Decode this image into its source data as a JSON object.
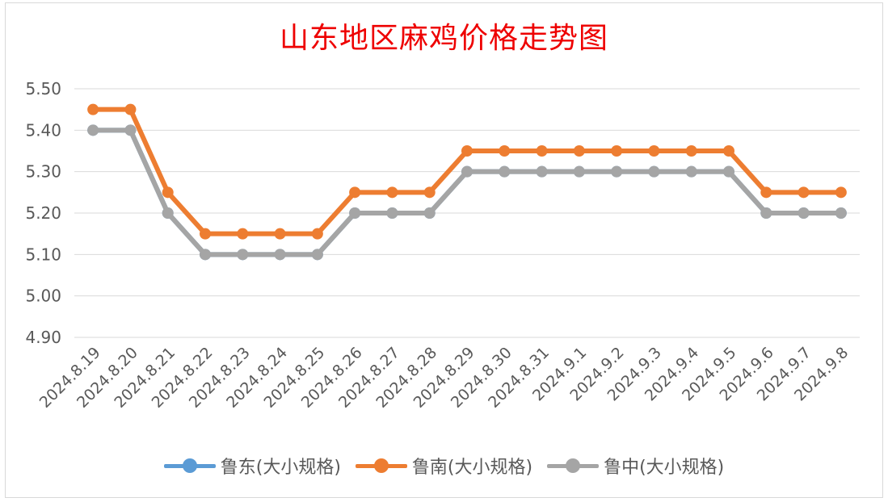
{
  "chart_data": {
    "type": "line",
    "title": "山东地区麻鸡价格走势图",
    "categories": [
      "2024.8.19",
      "2024.8.20",
      "2024.8.21",
      "2024.8.22",
      "2024.8.23",
      "2024.8.24",
      "2024.8.25",
      "2024.8.26",
      "2024.8.27",
      "2024.8.28",
      "2024.8.29",
      "2024.8.30",
      "2024.8.31",
      "2024.9.1",
      "2024.9.2",
      "2024.9.3",
      "2024.9.4",
      "2024.9.5",
      "2024.9.6",
      "2024.9.7",
      "2024.9.8"
    ],
    "y_ticks": [
      "5.50",
      "5.40",
      "5.30",
      "5.20",
      "5.10",
      "5.00",
      "4.90"
    ],
    "ylim": [
      4.9,
      5.5
    ],
    "grid": true,
    "legend_position": "bottom",
    "series": [
      {
        "name": "鲁东(大小规格)",
        "color": "#5b9bd5",
        "values": [
          5.4,
          5.4,
          5.2,
          5.1,
          5.1,
          5.1,
          5.1,
          5.2,
          5.2,
          5.2,
          5.3,
          5.3,
          5.3,
          5.3,
          5.3,
          5.3,
          5.3,
          5.3,
          5.2,
          5.2,
          5.2
        ]
      },
      {
        "name": "鲁南(大小规格)",
        "color": "#ed7d31",
        "values": [
          5.45,
          5.45,
          5.25,
          5.15,
          5.15,
          5.15,
          5.15,
          5.25,
          5.25,
          5.25,
          5.35,
          5.35,
          5.35,
          5.35,
          5.35,
          5.35,
          5.35,
          5.35,
          5.25,
          5.25,
          5.25
        ]
      },
      {
        "name": "鲁中(大小规格)",
        "color": "#a5a5a5",
        "values": [
          5.4,
          5.4,
          5.2,
          5.1,
          5.1,
          5.1,
          5.1,
          5.2,
          5.2,
          5.2,
          5.3,
          5.3,
          5.3,
          5.3,
          5.3,
          5.3,
          5.3,
          5.3,
          5.2,
          5.2,
          5.2
        ]
      }
    ]
  }
}
